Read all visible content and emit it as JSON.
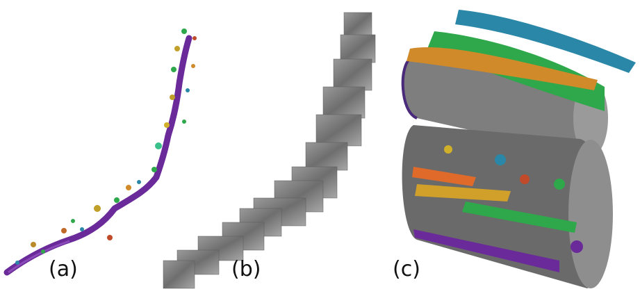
{
  "panels": [
    {
      "id": "a",
      "label": "(a)"
    },
    {
      "id": "b",
      "label": "(b)"
    },
    {
      "id": "c",
      "label": "(c)"
    }
  ],
  "colors": {
    "dendrite": "#6a2a9a",
    "axon_blue": "#2a87a8",
    "axon_orange": "#d08a2a",
    "axon_green": "#2ea84a",
    "em_gray": "#8a8a8a"
  }
}
